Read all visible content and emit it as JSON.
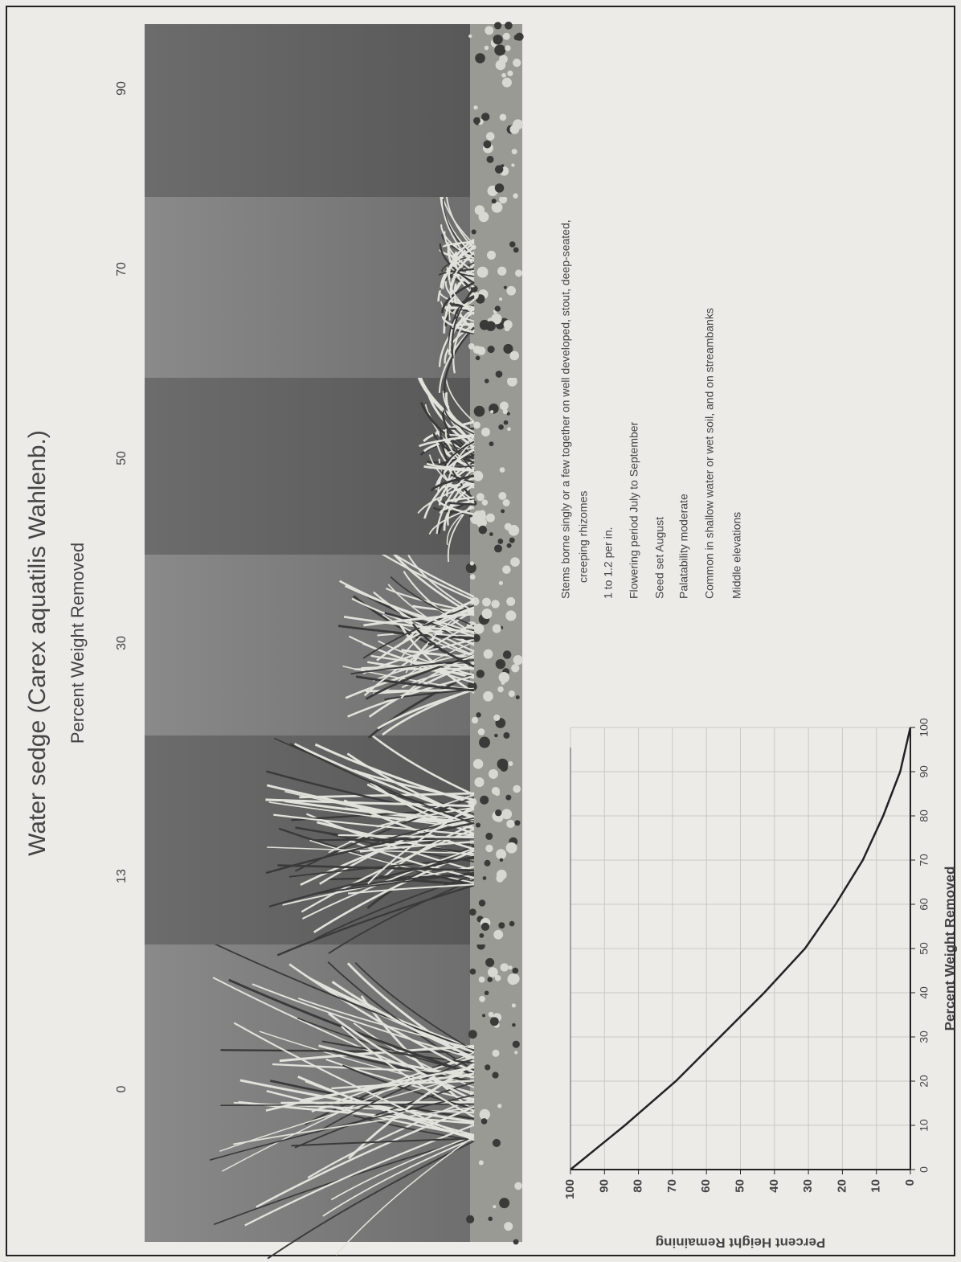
{
  "title": "Water sedge (Carex aquatilis Wahlenb.)",
  "subtitle": "Percent Weight Removed",
  "photo_labels": [
    "0",
    "13",
    "30",
    "50",
    "70",
    "90"
  ],
  "notes": [
    "Stems borne singly or a few together on well developed, stout, deep-seated,",
    "creeping rhizomes",
    "1 to 1.2 per in.",
    "Flowering period July to September",
    "Seed set August",
    "Palatability moderate",
    "Common in shallow water or wet soil, and on streambanks",
    "Middle elevations"
  ],
  "chart_data": {
    "type": "line",
    "x_label": "Percent Weight Removed",
    "y_label": "Percent Height Remaining",
    "x": [
      0,
      10,
      20,
      30,
      40,
      50,
      60,
      70,
      80,
      90,
      100
    ],
    "values": [
      100,
      84,
      69,
      56,
      43,
      31,
      22,
      14,
      8,
      3,
      0
    ],
    "color": "#222222",
    "xlim": [
      0,
      100
    ],
    "xticks": [
      0,
      10,
      20,
      30,
      40,
      50,
      60,
      70,
      80,
      90,
      100
    ],
    "ylim": [
      0,
      100
    ],
    "yticks": [
      0,
      10,
      20,
      30,
      40,
      50,
      60,
      70,
      80,
      90,
      100
    ],
    "grid": true
  }
}
